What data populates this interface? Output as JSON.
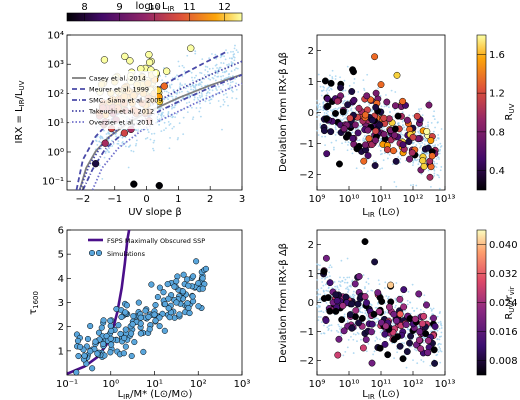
{
  "chart_data": [
    {
      "panel": "top-left",
      "type": "scatter",
      "xlabel": "UV slope β",
      "ylabel": "IRX = L_IR/L_UV",
      "xlim": [
        -2.5,
        3
      ],
      "ylim_log10": [
        -1.3,
        4
      ],
      "yscale": "log",
      "xticks": [
        "−2",
        "−1",
        "0",
        "1",
        "2",
        "3"
      ],
      "yticks": [
        "10⁻¹",
        "10⁰",
        "10¹",
        "10²",
        "10³",
        "10⁴"
      ],
      "colorbar": {
        "label": "log₁₀ L_IR",
        "range": [
          7.5,
          12.5
        ],
        "ticks": [
          "8",
          "9",
          "10",
          "11",
          "12"
        ],
        "placement": "top",
        "cmap": "inferno"
      },
      "legend": {
        "placement": "center-left",
        "entries": [
          {
            "name": "Casey et al. 2014",
            "color": "#7f7f7f",
            "style": "solid"
          },
          {
            "name": "Meurer et al. 1999",
            "color": "#4a4aa8",
            "style": "dashed"
          },
          {
            "name": "SMC, Siana et al. 2009",
            "color": "#4a4aa8",
            "style": "dashdot"
          },
          {
            "name": "Takeuchi et al. 2012",
            "color": "#4a4aa8",
            "style": "dotted"
          },
          {
            "name": "Overzier et al. 2011",
            "color": "#7070cc",
            "style": "dotted"
          }
        ]
      },
      "relations": [
        {
          "name": "Casey et al. 2014",
          "curve": [
            [
              -2.1,
              -1.3
            ],
            [
              -1.9,
              -0.55
            ],
            [
              -1.6,
              0.02
            ],
            [
              -1.2,
              0.5
            ],
            [
              -0.6,
              0.98
            ],
            [
              0,
              1.35
            ],
            [
              1,
              1.85
            ],
            [
              2,
              2.28
            ],
            [
              3,
              2.65
            ]
          ]
        },
        {
          "name": "Meurer et al. 1999",
          "curve": [
            [
              -2.2,
              -1.3
            ],
            [
              -2.0,
              -0.26
            ],
            [
              -1.6,
              0.53
            ],
            [
              -1.0,
              1.22
            ],
            [
              0,
              1.96
            ],
            [
              1,
              2.58
            ],
            [
              2,
              3.15
            ],
            [
              2.5,
              3.42
            ]
          ]
        },
        {
          "name": "SMC, Siana et al. 2009",
          "curve": [
            [
              -2.0,
              -1.3
            ],
            [
              -1.7,
              -0.6
            ],
            [
              -1.3,
              0.1
            ],
            [
              -0.6,
              0.78
            ],
            [
              0,
              1.18
            ],
            [
              1,
              1.72
            ],
            [
              2,
              2.2
            ],
            [
              3,
              2.64
            ]
          ]
        },
        {
          "name": "Takeuchi et al. 2012",
          "curve": [
            [
              -2.1,
              -1.3
            ],
            [
              -1.8,
              -0.45
            ],
            [
              -1.4,
              0.25
            ],
            [
              -0.8,
              0.9
            ],
            [
              0,
              1.52
            ],
            [
              1,
              2.12
            ],
            [
              2,
              2.64
            ],
            [
              3,
              3.1
            ]
          ]
        },
        {
          "name": "Overzier et al. 2011",
          "curve": [
            [
              -1.7,
              -1.3
            ],
            [
              -1.4,
              -0.55
            ],
            [
              -0.9,
              0.12
            ],
            [
              -0.2,
              0.7
            ],
            [
              0.5,
              1.12
            ],
            [
              1.5,
              1.65
            ],
            [
              2.5,
              2.12
            ],
            [
              3,
              2.34
            ]
          ]
        }
      ],
      "points_sample": [
        {
          "x": -0.5,
          "y": 2.6,
          "c": 12.0
        },
        {
          "x": -0.3,
          "y": 2.3,
          "c": 11.8
        },
        {
          "x": -0.9,
          "y": 1.5,
          "c": 10.6
        },
        {
          "x": -1.1,
          "y": 0.8,
          "c": 10.2
        },
        {
          "x": -1.3,
          "y": 0.3,
          "c": 9.6
        },
        {
          "x": -0.1,
          "y": 2.0,
          "c": 11.4
        },
        {
          "x": 0.3,
          "y": 2.7,
          "c": 12.2
        },
        {
          "x": -1.6,
          "y": -0.4,
          "c": 8.3
        },
        {
          "x": -0.4,
          "y": -1.1,
          "c": 7.6
        },
        {
          "x": 0.4,
          "y": -1.15,
          "c": 7.6
        },
        {
          "x": -0.7,
          "y": 1.9,
          "c": 11.0
        },
        {
          "x": -1.0,
          "y": 2.4,
          "c": 11.6
        }
      ]
    },
    {
      "panel": "top-right",
      "type": "scatter",
      "xlabel": "L_IR (L⊙)",
      "ylabel": "Deviation from IRX-β Δβ",
      "xscale": "log",
      "xlim_log10": [
        9,
        13
      ],
      "ylim": [
        -2.5,
        2.5
      ],
      "xticks": [
        "10⁹",
        "10¹⁰",
        "10¹¹",
        "10¹²",
        "10¹³"
      ],
      "yticks": [
        "−2",
        "−1",
        "0",
        "1",
        "2"
      ],
      "colorbar": {
        "label": "R_UV",
        "range": [
          0.2,
          1.8
        ],
        "ticks": [
          "0.4",
          "0.8",
          "1.2",
          "1.6"
        ],
        "placement": "right",
        "cmap": "inferno"
      },
      "points_sample": [
        {
          "x": 10.8,
          "y": 1.8,
          "c": 1.2
        },
        {
          "x": 11.0,
          "y": 0.9,
          "c": 1.3
        },
        {
          "x": 11.5,
          "y": 1.2,
          "c": 1.5
        },
        {
          "x": 12.0,
          "y": -0.8,
          "c": 1.0
        },
        {
          "x": 9.3,
          "y": -0.2,
          "c": 0.3
        },
        {
          "x": 10.2,
          "y": -0.4,
          "c": 0.7
        },
        {
          "x": 11.2,
          "y": -1.2,
          "c": 1.1
        },
        {
          "x": 12.6,
          "y": -1.4,
          "c": 1.2
        }
      ]
    },
    {
      "panel": "bottom-left",
      "type": "scatter",
      "xlabel": "L_IR/M* (L⊙/M⊙)",
      "ylabel": "τ_1600",
      "xscale": "log",
      "xlim_log10": [
        -1,
        3
      ],
      "ylim": [
        0,
        6
      ],
      "xticks": [
        "10⁻¹",
        "10⁰",
        "10¹",
        "10²",
        "10³"
      ],
      "yticks": [
        "1",
        "2",
        "3",
        "4",
        "5",
        "6"
      ],
      "legend": {
        "placement": "top-left",
        "entries": [
          {
            "name": "FSPS Maximally Obscured SSP",
            "color": "#4b0f8a",
            "style": "solid"
          },
          {
            "name": "Simulations",
            "color": "#5aa6dc",
            "style": "marker"
          }
        ]
      },
      "curve": [
        [
          -1.0,
          0.05
        ],
        [
          -0.6,
          0.35
        ],
        [
          -0.3,
          0.75
        ],
        [
          -0.1,
          1.25
        ],
        [
          0.05,
          1.9
        ],
        [
          0.15,
          2.6
        ],
        [
          0.25,
          3.6
        ],
        [
          0.32,
          4.6
        ],
        [
          0.38,
          5.6
        ],
        [
          0.42,
          6.0
        ]
      ],
      "points_sample": [
        {
          "x": -0.6,
          "y": 0.8
        },
        {
          "x": 0.0,
          "y": 1.5
        },
        {
          "x": 0.5,
          "y": 2.1
        },
        {
          "x": 1.0,
          "y": 2.5
        },
        {
          "x": 1.5,
          "y": 3.0
        },
        {
          "x": 2.0,
          "y": 3.8
        },
        {
          "x": 2.1,
          "y": 4.0
        },
        {
          "x": 0.3,
          "y": 0.9
        }
      ]
    },
    {
      "panel": "bottom-right",
      "type": "scatter",
      "xlabel": "L_IR (L⊙)",
      "ylabel": "Deviation from IRX-β Δβ",
      "xscale": "log",
      "xlim_log10": [
        9,
        13
      ],
      "ylim": [
        -2.5,
        2.5
      ],
      "xticks": [
        "10⁹",
        "10¹⁰",
        "10¹¹",
        "10¹²",
        "10¹³"
      ],
      "yticks": [
        "−2",
        "−1",
        "0",
        "1",
        "2"
      ],
      "colorbar": {
        "label": "R_UV/r_vir",
        "range": [
          0.004,
          0.044
        ],
        "ticks": [
          "0.008",
          "0.016",
          "0.024",
          "0.032",
          "0.040"
        ],
        "placement": "right",
        "cmap": "magma"
      },
      "points_sample": [
        {
          "x": 10.5,
          "y": 2.1,
          "c": 0.005
        },
        {
          "x": 10.8,
          "y": 1.4,
          "c": 0.01
        },
        {
          "x": 11.3,
          "y": 0.6,
          "c": 0.038
        },
        {
          "x": 11.6,
          "y": -0.4,
          "c": 0.028
        },
        {
          "x": 9.4,
          "y": -0.3,
          "c": 0.006
        },
        {
          "x": 12.2,
          "y": -1.3,
          "c": 0.02
        }
      ]
    }
  ]
}
